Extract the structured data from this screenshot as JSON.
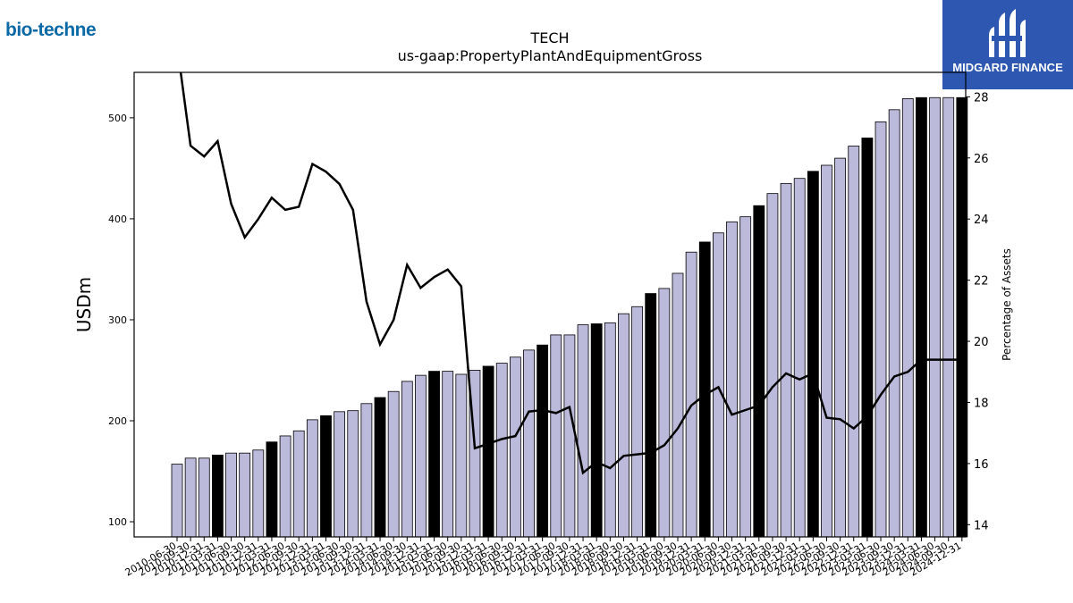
{
  "logos": {
    "left_text": "bio-techne",
    "right_text": "MIDGARD FINANCE",
    "left_color": "#0b6aa6",
    "right_bg": "#2d57b0"
  },
  "chart_data": {
    "type": "bar",
    "title": "TECH",
    "subtitle": "us-gaap:PropertyPlantAndEquipmentGross",
    "ylabel": "USDm",
    "y2label": "Percentage of Assets",
    "ylim": [
      85,
      545
    ],
    "y2lim": [
      13.6,
      28.8
    ],
    "yticks": [
      100,
      200,
      300,
      400,
      500
    ],
    "y2ticks": [
      14,
      16,
      18,
      20,
      22,
      24,
      26,
      28
    ],
    "colors": {
      "bar": "#bcbadb",
      "bar_highlight": "#000000",
      "line": "#000000"
    },
    "categories": [
      "2010-06-30",
      "2010-09-30",
      "2010-12-31",
      "2011-03-31",
      "2011-06-30",
      "2011-09-30",
      "2011-12-31",
      "2012-03-31",
      "2012-06-30",
      "2012-09-30",
      "2012-12-31",
      "2013-03-31",
      "2013-06-30",
      "2013-09-30",
      "2013-12-31",
      "2014-03-31",
      "2014-06-30",
      "2014-09-30",
      "2014-12-31",
      "2015-03-31",
      "2015-06-30",
      "2015-09-30",
      "2015-12-31",
      "2016-03-31",
      "2016-06-30",
      "2016-09-30",
      "2016-12-31",
      "2017-03-31",
      "2017-06-30",
      "2017-09-30",
      "2017-12-31",
      "2018-03-31",
      "2018-06-30",
      "2018-09-30",
      "2018-12-31",
      "2019-03-31",
      "2019-06-30",
      "2019-09-30",
      "2019-12-31",
      "2020-03-31",
      "2020-06-30",
      "2020-09-30",
      "2020-12-31",
      "2021-03-31",
      "2021-06-30",
      "2021-09-30",
      "2021-12-31",
      "2022-03-31",
      "2022-06-30",
      "2022-09-30",
      "2022-12-31",
      "2023-03-31",
      "2023-06-30",
      "2023-09-30",
      "2023-12-31",
      "2024-03-31",
      "2024-06-30",
      "2024-09-30",
      "2024-12-31"
    ],
    "tick_labels": [
      "2010-06-30",
      "2010-09-30",
      "2010-12-31",
      "2011-03-31",
      "2011-06-30",
      "2011-09-30",
      "2011-12-31",
      "2012-03-31",
      "2012-06-30",
      "2012-09-30",
      "2012-12-31",
      "2013-03-31",
      "2013-06-30",
      "2013-09-30",
      "2013-12-31",
      "2014-03-31",
      "2014-06-30",
      "2014-09-30",
      "2014-12-31",
      "2015-03-31",
      "2015-06-30",
      "2015-09-30",
      "2015-12-31",
      "2016-03-31",
      "2016-06-30",
      "2016-09-30",
      "2016-12-31",
      "2017-03-31",
      "2017-06-30",
      "2017-09-30",
      "2017-12-31",
      "2018-03-31",
      "2018-06-30",
      "2018-09-30",
      "2018-12-31",
      "2019-03-31",
      "2019-06-30",
      "2019-09-30",
      "2019-12-31",
      "2020-03-31",
      "2020-06-30",
      "2020-09-30",
      "2020-12-31",
      "2021-03-31",
      "2021-06-30",
      "2021-09-30",
      "2021-12-31",
      "2022-03-31",
      "2022-06-30",
      "2022-09-30",
      "2022-12-31",
      "2023-03-31",
      "2023-06-30",
      "2023-09-30",
      "2023-12-31",
      "2024-03-31",
      "2024-06-30",
      "2024-09-30",
      "2024-12-31"
    ],
    "highlight": [
      false,
      false,
      false,
      true,
      false,
      false,
      false,
      true,
      false,
      false,
      false,
      true,
      false,
      false,
      false,
      true,
      false,
      false,
      false,
      true,
      false,
      false,
      false,
      true,
      false,
      false,
      false,
      true,
      false,
      false,
      false,
      true,
      false,
      false,
      false,
      true,
      false,
      false,
      false,
      true,
      false,
      false,
      false,
      true,
      false,
      false,
      false,
      true,
      false,
      false,
      false,
      true,
      false,
      false,
      false,
      true,
      false,
      false,
      true
    ],
    "series": [
      {
        "name": "USDm",
        "type": "bar",
        "values": [
          157,
          163,
          163,
          166,
          168,
          168,
          171,
          179,
          185,
          190,
          201,
          205,
          209,
          210,
          217,
          223,
          229,
          239,
          245,
          249,
          249,
          246,
          250,
          254,
          257,
          263,
          270,
          275,
          285,
          285,
          295,
          296,
          297,
          306,
          313,
          326,
          331,
          346,
          367,
          377,
          386,
          397,
          402,
          413,
          425,
          435,
          440,
          447,
          453,
          460,
          472,
          480,
          496,
          508,
          519,
          520,
          520,
          520,
          520
        ]
      },
      {
        "name": "Percentage of Assets",
        "type": "line",
        "axis": "right",
        "values": [
          29.7,
          26.4,
          26.05,
          26.55,
          24.5,
          23.4,
          24.0,
          24.7,
          24.3,
          24.4,
          25.8,
          25.55,
          25.15,
          24.3,
          21.3,
          19.9,
          20.7,
          22.5,
          21.75,
          22.1,
          22.35,
          21.8,
          16.5,
          16.65,
          16.8,
          16.9,
          17.7,
          17.75,
          17.65,
          17.85,
          15.7,
          16.05,
          15.85,
          16.25,
          16.3,
          16.35,
          16.6,
          17.15,
          17.9,
          18.25,
          18.5,
          17.6,
          17.75,
          17.9,
          18.5,
          18.95,
          18.75,
          18.95,
          17.5,
          17.45,
          17.15,
          17.55,
          18.25,
          18.85,
          19.0,
          19.4,
          19.4,
          19.4,
          19.4
        ]
      }
    ]
  }
}
